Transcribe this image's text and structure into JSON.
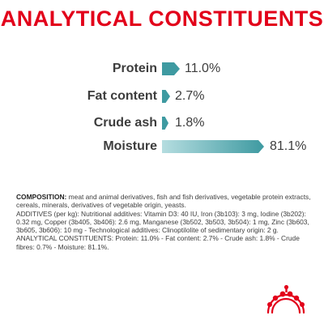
{
  "title": "ANALYTICAL CONSTITUENTS",
  "colors": {
    "brand_red": "#e2001a",
    "bar_teal_dark": "#3e9aa1",
    "bar_teal_light": "#b5dde0",
    "text": "#3d3d3d"
  },
  "constituents": [
    {
      "label": "Protein",
      "value": "11.0%",
      "percent": 11.0
    },
    {
      "label": "Fat content",
      "value": "2.7%",
      "percent": 2.7
    },
    {
      "label": "Crude ash",
      "value": "1.8%",
      "percent": 1.8
    },
    {
      "label": "Moisture",
      "value": "81.1%",
      "percent": 81.1
    }
  ],
  "composition": {
    "heading": "COMPOSITION:",
    "text": " meat and animal derivatives, fish and fish derivatives, vegetable protein extracts, cereals, minerals, derivatives of vegetable origin, yeasts.",
    "additives": "ADDITIVES (per kg): Nutritional additives: Vitamin D3: 40 IU, Iron (3b103): 3 mg, Iodine (3b202): 0.32 mg, Copper (3b405, 3b406): 2.6 mg, Manganese (3b502, 3b503, 3b504): 1 mg, Zinc (3b603, 3b605, 3b606): 10 mg - Technological additives: Clinoptilolite of sedimentary origin: 2 g.",
    "analytical": "ANALYTICAL CONSTITUENTS: Protein: 11.0% - Fat content: 2.7% - Crude ash: 1.8% - Crude fibres: 0.7% - Moisture: 81.1%."
  },
  "logo": {
    "icon": "royal-canin-crown-icon"
  }
}
